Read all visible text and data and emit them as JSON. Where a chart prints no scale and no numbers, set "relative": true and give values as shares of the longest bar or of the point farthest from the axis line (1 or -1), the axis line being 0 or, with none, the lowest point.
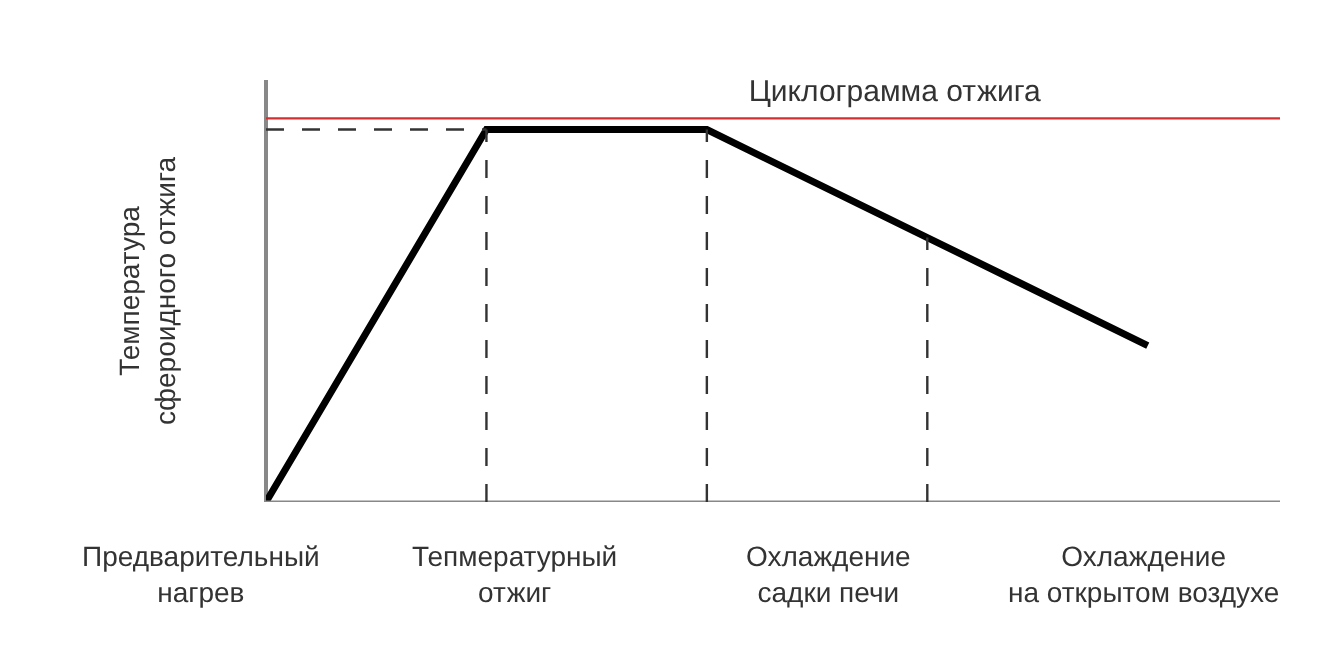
{
  "chart_data": {
    "type": "line",
    "relative": true,
    "title": "Циклограмма отжига",
    "ylabel": "Температура\nсфероидного отжига",
    "categories": [
      null,
      null,
      null,
      null,
      null
    ],
    "series": [
      {
        "color": "#000000",
        "values": [
          0,
          1,
          1,
          0.71,
          0.42
        ]
      }
    ],
    "annotations": [
      "Предварительный\nнагрев",
      "Тепмературный\nотжиг",
      "Охлаждение\nсадки печи",
      "Охлаждение\nна открытом воздухе"
    ],
    "ref_lines": [
      {
        "axis": "y",
        "value": 1.03,
        "color": "#d03030",
        "line_style": "solid"
      },
      {
        "axis": "y",
        "value": 1,
        "color": "#333333",
        "line_style": "dashed"
      }
    ],
    "grid": "x",
    "marker": "none",
    "line_style": "solid"
  }
}
